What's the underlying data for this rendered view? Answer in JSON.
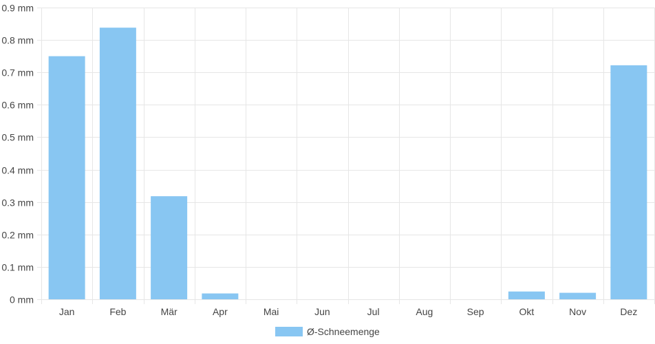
{
  "chart_data": {
    "type": "bar",
    "categories": [
      "Jan",
      "Feb",
      "Mär",
      "Apr",
      "Mai",
      "Jun",
      "Jul",
      "Aug",
      "Sep",
      "Okt",
      "Nov",
      "Dez"
    ],
    "series": [
      {
        "name": "Ø-Schneemenge",
        "values": [
          0.75,
          0.838,
          0.318,
          0.018,
          0,
          0,
          0,
          0,
          0,
          0.024,
          0.02,
          0.722
        ],
        "color": "#88C6F2"
      }
    ],
    "y_ticks": [
      "0 mm",
      "0.1 mm",
      "0.2 mm",
      "0.3 mm",
      "0.4 mm",
      "0.5 mm",
      "0.6 mm",
      "0.7 mm",
      "0.8 mm",
      "0.9 mm"
    ],
    "ylim": [
      0,
      0.9
    ],
    "grid": true,
    "legend_position": "bottom",
    "colors": {
      "bar": "#88C6F2",
      "grid": "#e6e6e6",
      "text": "#444444"
    }
  }
}
